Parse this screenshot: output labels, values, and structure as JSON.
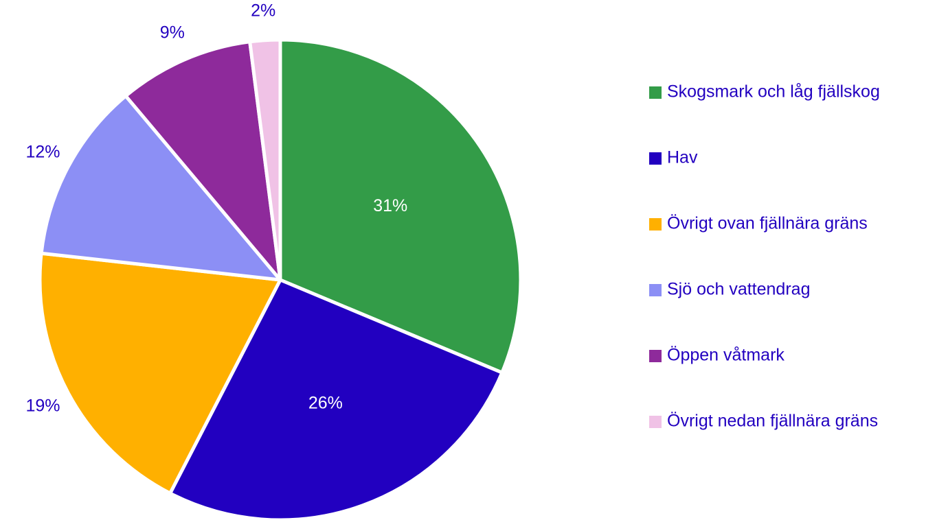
{
  "chart_data": {
    "type": "pie",
    "categories": [
      "Skogsmark och låg fjällskog",
      "Hav",
      "Övrigt ovan fjällnära gräns",
      "Sjö och vattendrag",
      "Öppen våtmark",
      "Övrigt nedan fjällnära gräns"
    ],
    "values": [
      31,
      26,
      19,
      12,
      9,
      2
    ],
    "value_labels": [
      "31%",
      "26%",
      "19%",
      "12%",
      "9%",
      "2%"
    ],
    "colors": [
      "#339c48",
      "#2200c0",
      "#ffb000",
      "#8c8ff5",
      "#8e2a9b",
      "#f0c2e6"
    ],
    "legend": "right"
  }
}
